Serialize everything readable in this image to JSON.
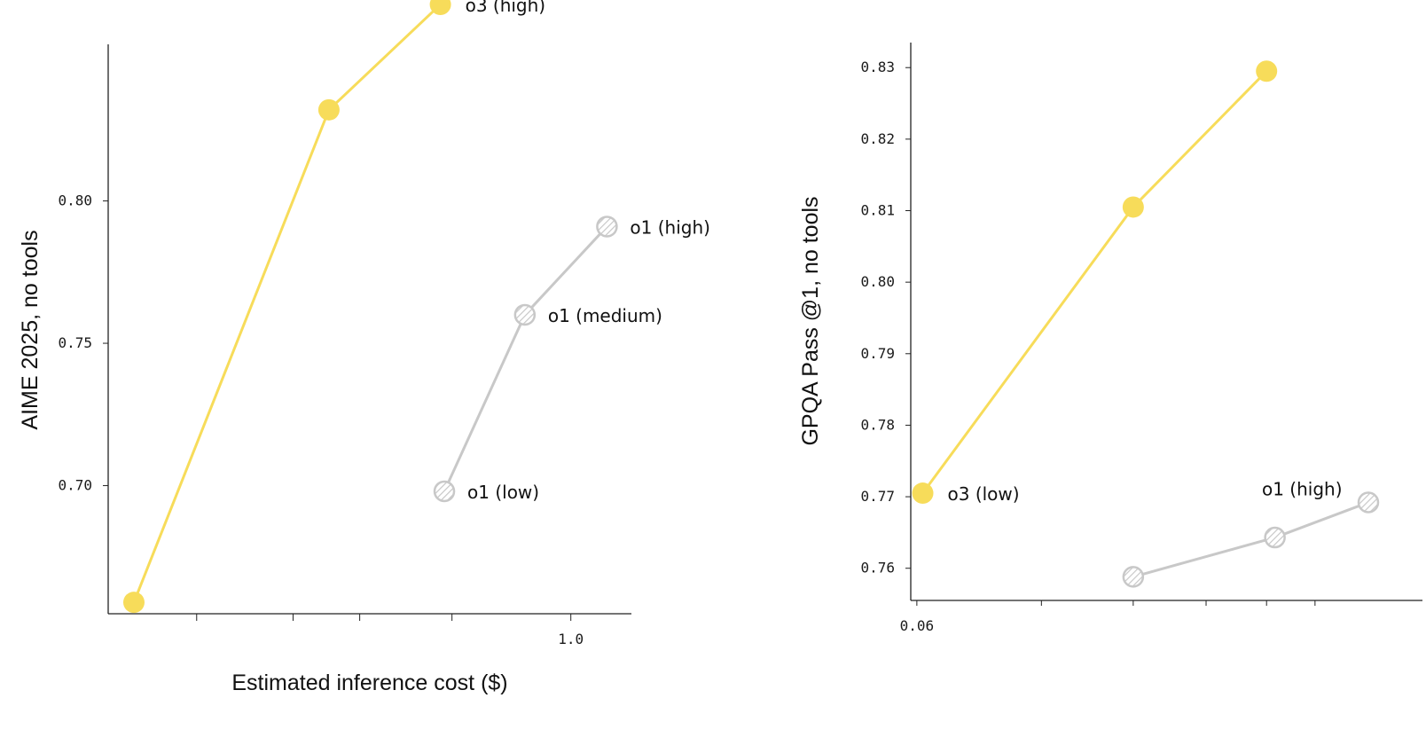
{
  "palette": {
    "o3": "#f7dc5a",
    "o1": "#c8c8c8"
  },
  "chart_data": [
    {
      "type": "line",
      "ylabel": "AIME 2025, no tools",
      "xlabel": "Estimated inference cost ($)",
      "x_scale": "log",
      "xlim": [
        0.12,
        1.32
      ],
      "ylim": [
        0.655,
        0.855
      ],
      "x_tick_values": [
        0.18,
        0.28,
        0.38,
        0.58,
        1.0
      ],
      "x_tick_labels": [
        "",
        "",
        "",
        "",
        "1.0"
      ],
      "y_tick_values": [
        0.7,
        0.75,
        0.8
      ],
      "y_tick_labels": [
        "0.70",
        "0.75",
        "0.80"
      ],
      "series": [
        {
          "name": "o3",
          "color_key": "o3",
          "x": [
            0.135,
            0.33,
            0.55
          ],
          "y": [
            0.659,
            0.832,
            0.869
          ],
          "point_labels": [
            "",
            "",
            "o3 (high)"
          ]
        },
        {
          "name": "o1",
          "color_key": "o1",
          "x": [
            0.56,
            0.81,
            1.18
          ],
          "y": [
            0.698,
            0.76,
            0.791
          ],
          "point_labels": [
            "o1 (low)",
            "o1 (medium)",
            "o1 (high)"
          ]
        }
      ]
    },
    {
      "type": "line",
      "ylabel": "GPQA Pass @1, no tools",
      "xlabel": "",
      "x_scale": "log",
      "xlim": [
        0.058,
        1.0
      ],
      "ylim": [
        0.7555,
        0.8335
      ],
      "x_tick_values": [
        0.06,
        0.12,
        0.2,
        0.3,
        0.42,
        0.55
      ],
      "x_tick_labels": [
        "0.06",
        "",
        "",
        "",
        "",
        ""
      ],
      "y_tick_values": [
        0.76,
        0.77,
        0.78,
        0.79,
        0.8,
        0.81,
        0.82,
        0.83
      ],
      "y_tick_labels": [
        "0.76",
        "0.77",
        "0.78",
        "0.79",
        "0.80",
        "0.81",
        "0.82",
        "0.83"
      ],
      "series": [
        {
          "name": "o3",
          "color_key": "o3",
          "x": [
            0.062,
            0.2,
            0.42
          ],
          "y": [
            0.7705,
            0.8105,
            0.8295
          ],
          "point_labels": [
            "o3 (low)",
            "",
            ""
          ]
        },
        {
          "name": "o1",
          "color_key": "o1",
          "x": [
            0.2,
            0.44,
            0.74
          ],
          "y": [
            0.7588,
            0.7643,
            0.7692
          ],
          "point_labels": [
            "",
            "",
            "o1 (high)"
          ]
        }
      ]
    }
  ]
}
